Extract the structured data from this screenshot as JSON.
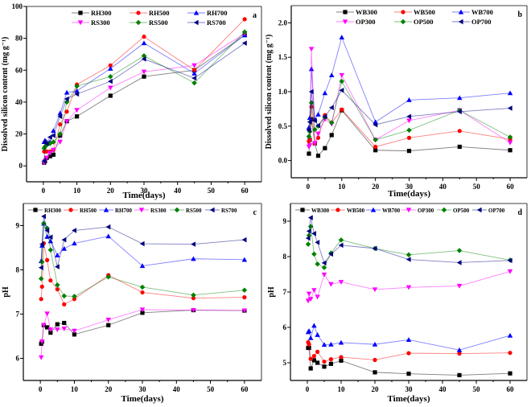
{
  "chart_data": [
    {
      "type": "line",
      "panel_label": "a",
      "xlabel": "Time(days)",
      "ylabel": "Dissolved silicon content (mg g⁻¹)",
      "xlim": [
        -5,
        65
      ],
      "ylim": [
        -10,
        100
      ],
      "xticks": [
        0,
        10,
        20,
        30,
        40,
        50,
        60
      ],
      "yticks": [
        0,
        20,
        40,
        60,
        80,
        100
      ],
      "ytick_decimals": 0,
      "legend_placement": "top",
      "legend_columns": 3,
      "x": [
        0.25,
        0.5,
        1,
        2,
        3,
        5,
        7,
        10,
        20,
        30,
        45,
        60
      ],
      "series": [
        {
          "name": "RH300",
          "color": "#000000",
          "marker": "square",
          "values": [
            2,
            3,
            5,
            6,
            7,
            19,
            28,
            31,
            44,
            56,
            60,
            82
          ]
        },
        {
          "name": "RH500",
          "color": "#ff0000",
          "marker": "circle",
          "values": [
            9,
            9,
            9,
            9,
            10,
            26,
            34,
            51,
            63,
            81,
            60,
            92
          ]
        },
        {
          "name": "RH700",
          "color": "#0000ff",
          "marker": "triangle-up",
          "values": [
            15,
            16,
            14,
            15,
            22,
            33,
            46,
            47,
            61,
            77,
            58,
            82
          ]
        },
        {
          "name": "RS300",
          "color": "#ff00ff",
          "marker": "triangle-down",
          "values": [
            2,
            3,
            5,
            8,
            10,
            15,
            28,
            35,
            49,
            59,
            63,
            83
          ]
        },
        {
          "name": "RS500",
          "color": "#008000",
          "marker": "diamond",
          "values": [
            11,
            12,
            13,
            14,
            15,
            20,
            40,
            50,
            56,
            69,
            52,
            84
          ]
        },
        {
          "name": "RS700",
          "color": "#000080",
          "marker": "triangle-left",
          "values": [
            3,
            15,
            14,
            18,
            19,
            31,
            42,
            45,
            53,
            67,
            55,
            77
          ]
        }
      ]
    },
    {
      "type": "line",
      "panel_label": "b",
      "xlabel": "Time(days)",
      "ylabel": "Dissolved silicon content (mg g⁻¹)",
      "xlim": [
        -5,
        65
      ],
      "ylim": [
        -0.25,
        2.25
      ],
      "xticks": [
        0,
        10,
        20,
        30,
        40,
        50,
        60
      ],
      "yticks": [
        0,
        0.5,
        1,
        1.5,
        2
      ],
      "ytick_decimals": 1,
      "legend_placement": "top",
      "legend_columns": 3,
      "x": [
        0.25,
        0.5,
        1,
        2,
        3,
        5,
        7,
        10,
        20,
        30,
        45,
        60
      ],
      "series": [
        {
          "name": "WB300",
          "color": "#000000",
          "marker": "square",
          "values": [
            0.1,
            0.3,
            0.6,
            0.25,
            0.07,
            0.18,
            0.37,
            0.73,
            0.15,
            0.14,
            0.2,
            0.15
          ]
        },
        {
          "name": "WB500",
          "color": "#ff0000",
          "marker": "circle",
          "values": [
            0.28,
            0.3,
            0.78,
            0.25,
            0.33,
            0.66,
            0.55,
            0.74,
            0.2,
            0.33,
            0.43,
            0.31
          ]
        },
        {
          "name": "WB700",
          "color": "#0000ff",
          "marker": "triangle-up",
          "values": [
            0.48,
            0.62,
            1.33,
            0.6,
            0.67,
            0.98,
            1.24,
            1.79,
            0.56,
            0.88,
            0.91,
            0.98
          ]
        },
        {
          "name": "OP300",
          "color": "#ff00ff",
          "marker": "triangle-down",
          "values": [
            0.2,
            0.22,
            1.62,
            0.25,
            0.39,
            0.6,
            0.53,
            1.24,
            0.3,
            0.58,
            0.73,
            0.26
          ]
        },
        {
          "name": "OP500",
          "color": "#008000",
          "marker": "diamond",
          "values": [
            0.35,
            0.42,
            0.84,
            0.45,
            0.5,
            0.63,
            0.55,
            1.15,
            0.3,
            0.44,
            0.73,
            0.34
          ]
        },
        {
          "name": "OP700",
          "color": "#000080",
          "marker": "triangle-left",
          "values": [
            0.44,
            0.56,
            1.0,
            0.58,
            0.51,
            0.64,
            0.77,
            1.02,
            0.52,
            0.64,
            0.71,
            0.76
          ]
        }
      ]
    },
    {
      "type": "line",
      "panel_label": "c",
      "xlabel": "Time(days)",
      "ylabel": "pH",
      "xlim": [
        -5,
        65
      ],
      "ylim": [
        5.5,
        9.5
      ],
      "xticks": [
        0,
        10,
        20,
        30,
        40,
        50,
        60
      ],
      "yticks": [
        6,
        7,
        8,
        9
      ],
      "ytick_decimals": 0,
      "legend_placement": "top",
      "legend_columns": 6,
      "x": [
        0.25,
        0.5,
        1,
        2,
        3,
        5,
        7,
        10,
        20,
        30,
        45,
        60
      ],
      "series": [
        {
          "name": "RH300",
          "color": "#000000",
          "marker": "square",
          "values": [
            6.33,
            6.38,
            6.75,
            6.7,
            6.58,
            6.77,
            6.8,
            6.54,
            6.75,
            7.03,
            7.09,
            7.08
          ]
        },
        {
          "name": "RH500",
          "color": "#ff0000",
          "marker": "circle",
          "values": [
            7.34,
            7.62,
            8.6,
            8.22,
            7.76,
            7.56,
            7.22,
            7.34,
            7.88,
            7.49,
            7.36,
            7.38
          ]
        },
        {
          "name": "RH700",
          "color": "#0000ff",
          "marker": "triangle-up",
          "values": [
            8.2,
            8.55,
            9.05,
            8.75,
            8.65,
            8.33,
            8.48,
            8.6,
            8.76,
            8.09,
            8.25,
            8.23
          ]
        },
        {
          "name": "RS300",
          "color": "#ff00ff",
          "marker": "triangle-down",
          "values": [
            6.02,
            6.38,
            6.75,
            7.01,
            6.65,
            6.65,
            6.67,
            6.62,
            6.87,
            7.1,
            7.09,
            7.08
          ]
        },
        {
          "name": "RS500",
          "color": "#008000",
          "marker": "diamond",
          "values": [
            7.8,
            8.18,
            9.05,
            8.94,
            8.45,
            7.66,
            7.41,
            7.4,
            7.84,
            7.61,
            7.43,
            7.54
          ]
        },
        {
          "name": "RS700",
          "color": "#000080",
          "marker": "triangle-left",
          "values": [
            8.05,
            8.58,
            9.21,
            8.89,
            8.74,
            8.07,
            8.68,
            8.89,
            8.97,
            8.59,
            8.58,
            8.68
          ]
        }
      ]
    },
    {
      "type": "line",
      "panel_label": "d",
      "xlabel": "Time(days)",
      "ylabel": "pH",
      "xlim": [
        -5,
        65
      ],
      "ylim": [
        4.5,
        9.5
      ],
      "xticks": [
        0,
        10,
        20,
        30,
        40,
        50,
        60
      ],
      "yticks": [
        5,
        6,
        7,
        8,
        9
      ],
      "ytick_decimals": 0,
      "legend_placement": "top",
      "legend_columns": 6,
      "x": [
        0.25,
        0.5,
        1,
        2,
        3,
        5,
        7,
        10,
        20,
        30,
        45,
        60
      ],
      "series": [
        {
          "name": "WB300",
          "color": "#000000",
          "marker": "square",
          "values": [
            5.42,
            5.42,
            4.84,
            5.07,
            5.0,
            4.89,
            4.97,
            5.06,
            4.73,
            4.69,
            4.65,
            4.7
          ]
        },
        {
          "name": "WB500",
          "color": "#ff0000",
          "marker": "circle",
          "values": [
            5.58,
            5.52,
            5.11,
            5.19,
            5.31,
            5.03,
            5.1,
            5.16,
            5.08,
            5.27,
            5.26,
            5.28
          ]
        },
        {
          "name": "WB700",
          "color": "#0000ff",
          "marker": "triangle-up",
          "values": [
            5.87,
            5.9,
            5.7,
            6.05,
            5.79,
            5.51,
            5.52,
            5.57,
            5.52,
            5.65,
            5.36,
            5.77
          ]
        },
        {
          "name": "OP300",
          "color": "#ff00ff",
          "marker": "triangle-down",
          "values": [
            6.75,
            6.95,
            6.8,
            7.05,
            6.86,
            7.49,
            7.22,
            7.28,
            7.07,
            7.13,
            7.17,
            7.58
          ]
        },
        {
          "name": "OP500",
          "color": "#008000",
          "marker": "diamond",
          "values": [
            8.35,
            8.6,
            8.85,
            8.07,
            7.79,
            7.69,
            8.1,
            8.47,
            8.23,
            8.05,
            8.17,
            7.9
          ]
        },
        {
          "name": "OP700",
          "color": "#000080",
          "marker": "triangle-left",
          "values": [
            8.52,
            8.72,
            9.1,
            8.65,
            8.4,
            7.82,
            8.07,
            8.32,
            8.23,
            7.92,
            7.83,
            7.89
          ]
        }
      ]
    }
  ]
}
